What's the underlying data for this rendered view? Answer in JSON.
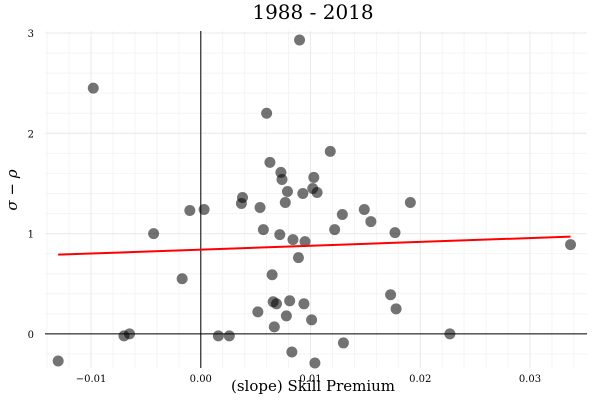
{
  "chart_data": {
    "type": "scatter",
    "title": "1988 - 2018",
    "xlabel": "(slope) Skill Premium",
    "ylabel": "σ − ρ",
    "xlim": [
      -0.0142,
      0.0352
    ],
    "ylim": [
      -0.34,
      3.02
    ],
    "xticks": [
      -0.01,
      0.0,
      0.01,
      0.02,
      0.03
    ],
    "xtick_labels": [
      "−0.01",
      "0.00",
      "0.01",
      "0.02",
      "0.03"
    ],
    "yticks": [
      0,
      1,
      2,
      3
    ],
    "ytick_labels": [
      "0",
      "1",
      "2",
      "3"
    ],
    "grid": true,
    "zero_lines": true,
    "series": [
      {
        "kind": "scatter",
        "color": "#000000",
        "points": [
          [
            -0.013,
            -0.27
          ],
          [
            -0.0098,
            2.45
          ],
          [
            -0.007,
            -0.02
          ],
          [
            -0.0065,
            0.0
          ],
          [
            -0.0043,
            1.0
          ],
          [
            -0.0017,
            0.55
          ],
          [
            -0.001,
            1.23
          ],
          [
            0.0003,
            1.24
          ],
          [
            0.0016,
            -0.02
          ],
          [
            0.0026,
            -0.02
          ],
          [
            0.0037,
            1.3
          ],
          [
            0.0038,
            1.36
          ],
          [
            0.0052,
            0.22
          ],
          [
            0.0054,
            1.26
          ],
          [
            0.0057,
            1.04
          ],
          [
            0.006,
            2.2
          ],
          [
            0.0063,
            1.71
          ],
          [
            0.0065,
            0.59
          ],
          [
            0.0066,
            0.32
          ],
          [
            0.0067,
            0.07
          ],
          [
            0.0069,
            0.3
          ],
          [
            0.0072,
            0.99
          ],
          [
            0.0073,
            1.61
          ],
          [
            0.0074,
            1.54
          ],
          [
            0.0077,
            1.31
          ],
          [
            0.0078,
            0.18
          ],
          [
            0.0079,
            1.42
          ],
          [
            0.0081,
            0.33
          ],
          [
            0.0083,
            -0.18
          ],
          [
            0.0084,
            0.94
          ],
          [
            0.0089,
            0.76
          ],
          [
            0.009,
            2.93
          ],
          [
            0.0093,
            1.4
          ],
          [
            0.0094,
            0.3
          ],
          [
            0.0095,
            0.92
          ],
          [
            0.0101,
            0.14
          ],
          [
            0.0102,
            1.45
          ],
          [
            0.0103,
            1.56
          ],
          [
            0.0104,
            -0.29
          ],
          [
            0.0106,
            1.41
          ],
          [
            0.0118,
            1.82
          ],
          [
            0.0122,
            1.04
          ],
          [
            0.0129,
            1.19
          ],
          [
            0.013,
            -0.09
          ],
          [
            0.0149,
            1.24
          ],
          [
            0.0155,
            1.12
          ],
          [
            0.0173,
            0.39
          ],
          [
            0.0177,
            1.01
          ],
          [
            0.0178,
            0.25
          ],
          [
            0.0191,
            1.31
          ],
          [
            0.0227,
            0.0
          ],
          [
            0.0337,
            0.89
          ]
        ]
      },
      {
        "kind": "line",
        "color": "#ff0000",
        "points": [
          [
            -0.013,
            0.79
          ],
          [
            0.0337,
            0.97
          ]
        ]
      }
    ]
  }
}
